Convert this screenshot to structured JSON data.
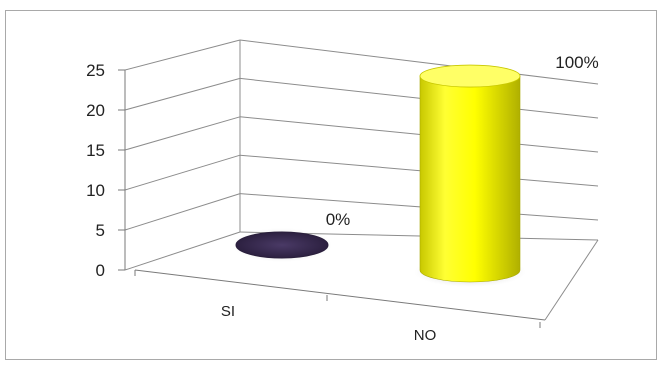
{
  "chart_data": {
    "type": "bar",
    "categories": [
      "SI",
      "NO"
    ],
    "values": [
      0,
      24
    ],
    "data_labels": [
      "0%",
      "100%"
    ],
    "ylim": [
      0,
      25
    ],
    "yticks": [
      0,
      5,
      10,
      15,
      20,
      25
    ],
    "grid": true,
    "style": "3d-cylinder",
    "colors": {
      "SI": "#3d2f58",
      "NO": "#ffff00"
    }
  }
}
